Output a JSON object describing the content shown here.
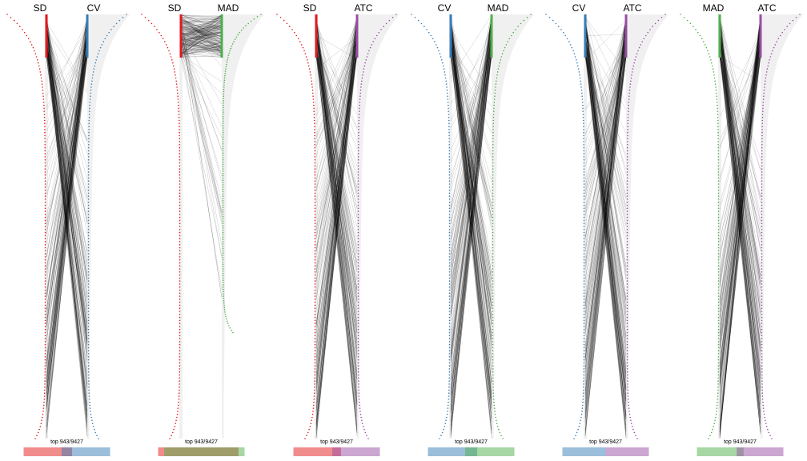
{
  "colors": {
    "SD": "#e41a1c",
    "CV": "#377eb8",
    "MAD": "#4daf4a",
    "ATC": "#984ea3",
    "ribbon_fill": "#f0f0f0",
    "lines": "#000000"
  },
  "chart_data": [
    {
      "type": "ranking-comparison",
      "methods": [
        "SD",
        "CV"
      ],
      "caption": "top 943/9427",
      "top_n": 943,
      "total_n": 9427,
      "overlap_fraction": 0.12,
      "left_extent": 0.0,
      "right_extent": 1.0,
      "link_mode": "cross"
    },
    {
      "type": "ranking-comparison",
      "methods": [
        "SD",
        "MAD"
      ],
      "caption": "top 943/9427",
      "top_n": 943,
      "total_n": 9427,
      "overlap_fraction": 0.86,
      "left_extent": 0.0,
      "right_extent": 0.75,
      "link_mode": "parallel"
    },
    {
      "type": "ranking-comparison",
      "methods": [
        "SD",
        "ATC"
      ],
      "caption": "top 943/9427",
      "top_n": 943,
      "total_n": 9427,
      "overlap_fraction": 0.1,
      "left_extent": 1.0,
      "right_extent": 1.0,
      "link_mode": "cross"
    },
    {
      "type": "ranking-comparison",
      "methods": [
        "CV",
        "MAD"
      ],
      "caption": "top 943/9427",
      "top_n": 943,
      "total_n": 9427,
      "overlap_fraction": 0.14,
      "left_extent": 1.0,
      "right_extent": 1.0,
      "link_mode": "cross"
    },
    {
      "type": "ranking-comparison",
      "methods": [
        "CV",
        "ATC"
      ],
      "caption": "top 943/9427",
      "top_n": 943,
      "total_n": 9427,
      "overlap_fraction": 0.0,
      "left_extent": 1.0,
      "right_extent": 1.0,
      "link_mode": "cross"
    },
    {
      "type": "ranking-comparison",
      "methods": [
        "MAD",
        "ATC"
      ],
      "caption": "top 943/9427",
      "top_n": 943,
      "total_n": 9427,
      "overlap_fraction": 0.08,
      "left_extent": 1.0,
      "right_extent": 1.0,
      "link_mode": "cross"
    }
  ]
}
